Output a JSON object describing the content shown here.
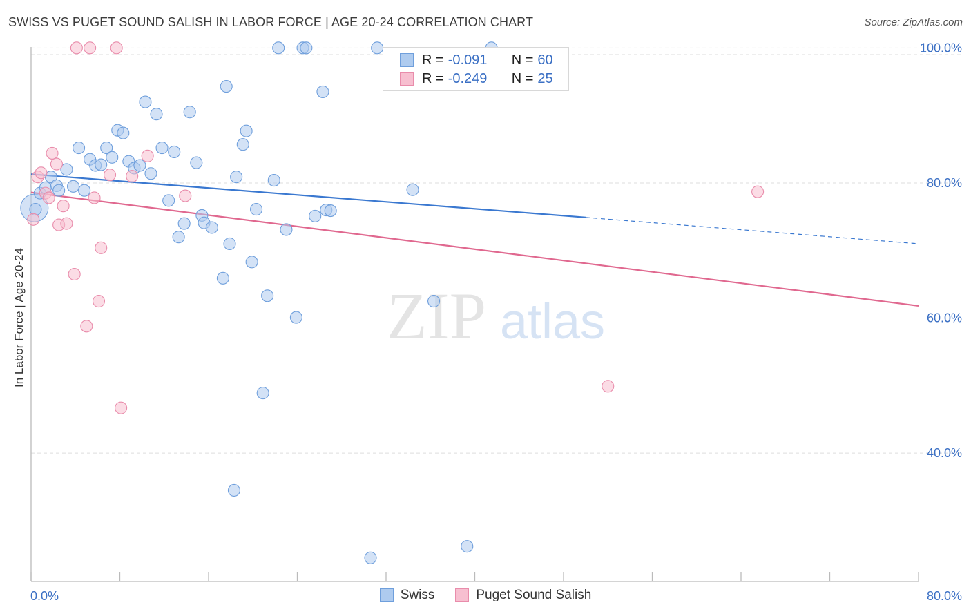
{
  "header": {
    "title": "SWISS VS PUGET SOUND SALISH IN LABOR FORCE | AGE 20-24 CORRELATION CHART",
    "source": "Source: ZipAtlas.com"
  },
  "watermark": {
    "zip": "ZIP",
    "atlas": "atlas"
  },
  "legend_stats": [
    {
      "r_label": "R =",
      "r_value": "-0.091",
      "n_label": "N =",
      "n_value": "60"
    },
    {
      "r_label": "R =",
      "r_value": "-0.249",
      "n_label": "N =",
      "n_value": "25"
    }
  ],
  "chart_data": {
    "type": "scatter",
    "title": "SWISS VS PUGET SOUND SALISH IN LABOR FORCE | AGE 20-24 CORRELATION CHART",
    "xlabel": "",
    "ylabel": "In Labor Force | Age 20-24",
    "xlim": [
      0,
      80
    ],
    "ylim": [
      21,
      103
    ],
    "x_tick_labels": [
      "0.0%",
      "80.0%"
    ],
    "y_tick_values": [
      100,
      80,
      60,
      40
    ],
    "y_tick_labels": [
      "100.0%",
      "80.0%",
      "60.0%",
      "40.0%"
    ],
    "grid": "horizontal dashed",
    "legend_position": "bottom-center",
    "colors": {
      "swiss_fill": "#aecbef",
      "swiss_stroke": "#6f9fdc",
      "swiss_line": "#3a78d0",
      "salish_fill": "#f7bfd0",
      "salish_stroke": "#e98cab",
      "salish_line": "#e0688f",
      "axis_label": "#3a6fc4"
    },
    "series": [
      {
        "name": "Swiss",
        "r": -0.091,
        "n": 60,
        "trend": {
          "x0": 0,
          "y0": 81.3,
          "x1": 50,
          "y1": 74.9,
          "x_dash_end": 80,
          "y_dash_end": 71.0
        },
        "points": [
          [
            0.4,
            76.1
          ],
          [
            0.8,
            78.5
          ],
          [
            1.3,
            79.3
          ],
          [
            1.8,
            80.9
          ],
          [
            2.3,
            79.6
          ],
          [
            2.5,
            78.9
          ],
          [
            3.2,
            82.0
          ],
          [
            3.8,
            79.5
          ],
          [
            4.3,
            85.2
          ],
          [
            4.8,
            78.9
          ],
          [
            5.3,
            83.5
          ],
          [
            5.8,
            82.6
          ],
          [
            6.3,
            82.7
          ],
          [
            6.8,
            85.2
          ],
          [
            7.3,
            83.8
          ],
          [
            7.8,
            87.8
          ],
          [
            8.3,
            87.4
          ],
          [
            8.8,
            83.2
          ],
          [
            9.3,
            82.2
          ],
          [
            9.8,
            82.6
          ],
          [
            10.3,
            92.0
          ],
          [
            10.8,
            81.4
          ],
          [
            11.3,
            90.2
          ],
          [
            11.8,
            85.2
          ],
          [
            12.4,
            77.4
          ],
          [
            12.9,
            84.6
          ],
          [
            13.3,
            72.0
          ],
          [
            13.8,
            74.0
          ],
          [
            14.3,
            90.5
          ],
          [
            14.9,
            83.0
          ],
          [
            15.4,
            75.2
          ],
          [
            15.6,
            74.1
          ],
          [
            16.3,
            73.4
          ],
          [
            17.3,
            65.9
          ],
          [
            17.6,
            94.3
          ],
          [
            17.9,
            71.0
          ],
          [
            18.5,
            80.9
          ],
          [
            19.1,
            85.7
          ],
          [
            19.4,
            87.7
          ],
          [
            19.9,
            68.3
          ],
          [
            20.3,
            76.1
          ],
          [
            20.9,
            48.9
          ],
          [
            21.3,
            63.3
          ],
          [
            21.9,
            80.4
          ],
          [
            22.3,
            100.0
          ],
          [
            23.0,
            73.1
          ],
          [
            23.9,
            60.1
          ],
          [
            24.5,
            100.0
          ],
          [
            24.8,
            100.0
          ],
          [
            25.6,
            75.1
          ],
          [
            26.3,
            93.5
          ],
          [
            26.6,
            76.0
          ],
          [
            27.0,
            75.9
          ],
          [
            30.6,
            24.5
          ],
          [
            31.2,
            100.0
          ],
          [
            34.4,
            79.0
          ],
          [
            36.3,
            62.5
          ],
          [
            39.3,
            26.2
          ],
          [
            41.5,
            100.0
          ],
          [
            18.3,
            34.5
          ]
        ]
      },
      {
        "name": "Puget Sound Salish",
        "r": -0.249,
        "n": 25,
        "trend": {
          "x0": 0,
          "y0": 78.6,
          "x1": 80,
          "y1": 61.8
        },
        "points": [
          [
            0.2,
            74.6
          ],
          [
            0.6,
            80.9
          ],
          [
            0.9,
            81.5
          ],
          [
            1.3,
            78.5
          ],
          [
            1.6,
            77.8
          ],
          [
            1.9,
            84.4
          ],
          [
            2.3,
            82.8
          ],
          [
            2.5,
            73.8
          ],
          [
            2.9,
            76.6
          ],
          [
            3.2,
            74.0
          ],
          [
            3.9,
            66.5
          ],
          [
            4.1,
            100.0
          ],
          [
            5.0,
            58.8
          ],
          [
            5.3,
            100.0
          ],
          [
            5.7,
            77.8
          ],
          [
            6.1,
            62.5
          ],
          [
            6.3,
            70.4
          ],
          [
            7.1,
            81.2
          ],
          [
            7.7,
            100.0
          ],
          [
            8.1,
            46.7
          ],
          [
            9.1,
            81.0
          ],
          [
            10.5,
            84.0
          ],
          [
            13.9,
            78.1
          ],
          [
            52.0,
            49.9
          ],
          [
            65.5,
            78.7
          ]
        ]
      }
    ]
  }
}
